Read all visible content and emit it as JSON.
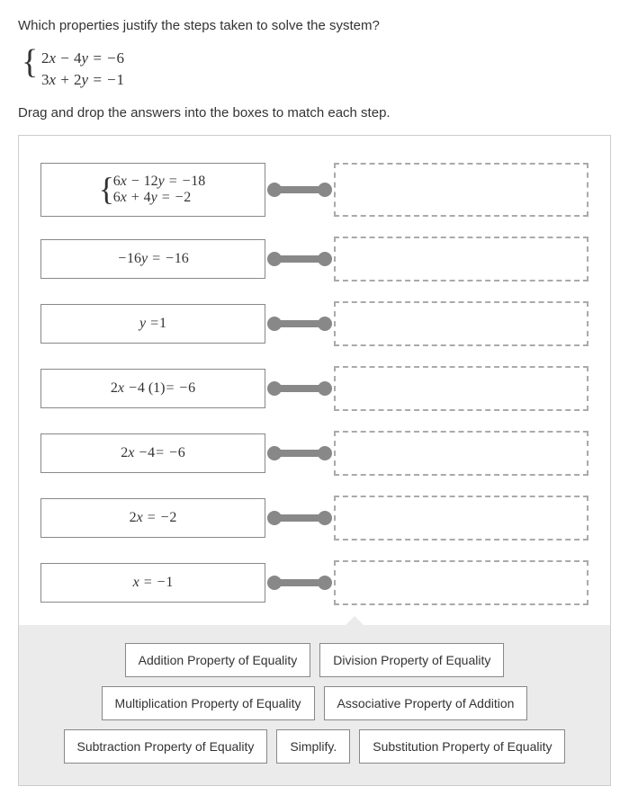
{
  "question": "Which properties justify the steps taken to solve the system?",
  "system": {
    "eq1": "2x − 4y = −6",
    "eq2": "3x + 2y = −1"
  },
  "instruction": "Drag and drop the answers into the boxes to match each step.",
  "steps": [
    {
      "type": "system",
      "eq1": "6x − 12y = −18",
      "eq2": "6x + 4y = −2"
    },
    {
      "type": "single",
      "eq": "−16y = −16"
    },
    {
      "type": "single",
      "eq": "y = 1"
    },
    {
      "type": "single",
      "eq": "2x − 4 (1) = −6"
    },
    {
      "type": "single",
      "eq": "2x − 4 = −6"
    },
    {
      "type": "single",
      "eq": "2x = −2"
    },
    {
      "type": "single",
      "eq": "x = −1"
    }
  ],
  "answers": [
    "Addition Property of Equality",
    "Division Property of Equality",
    "Multiplication Property of Equality",
    "Associative Property of Addition",
    "Subtraction Property of Equality",
    "Simplify.",
    "Substitution Property of Equality"
  ],
  "colors": {
    "text": "#333333",
    "border": "#888888",
    "dashed": "#aaaaaa",
    "connector": "#888888",
    "bank_bg": "#ebebeb",
    "page_bg": "#ffffff"
  }
}
